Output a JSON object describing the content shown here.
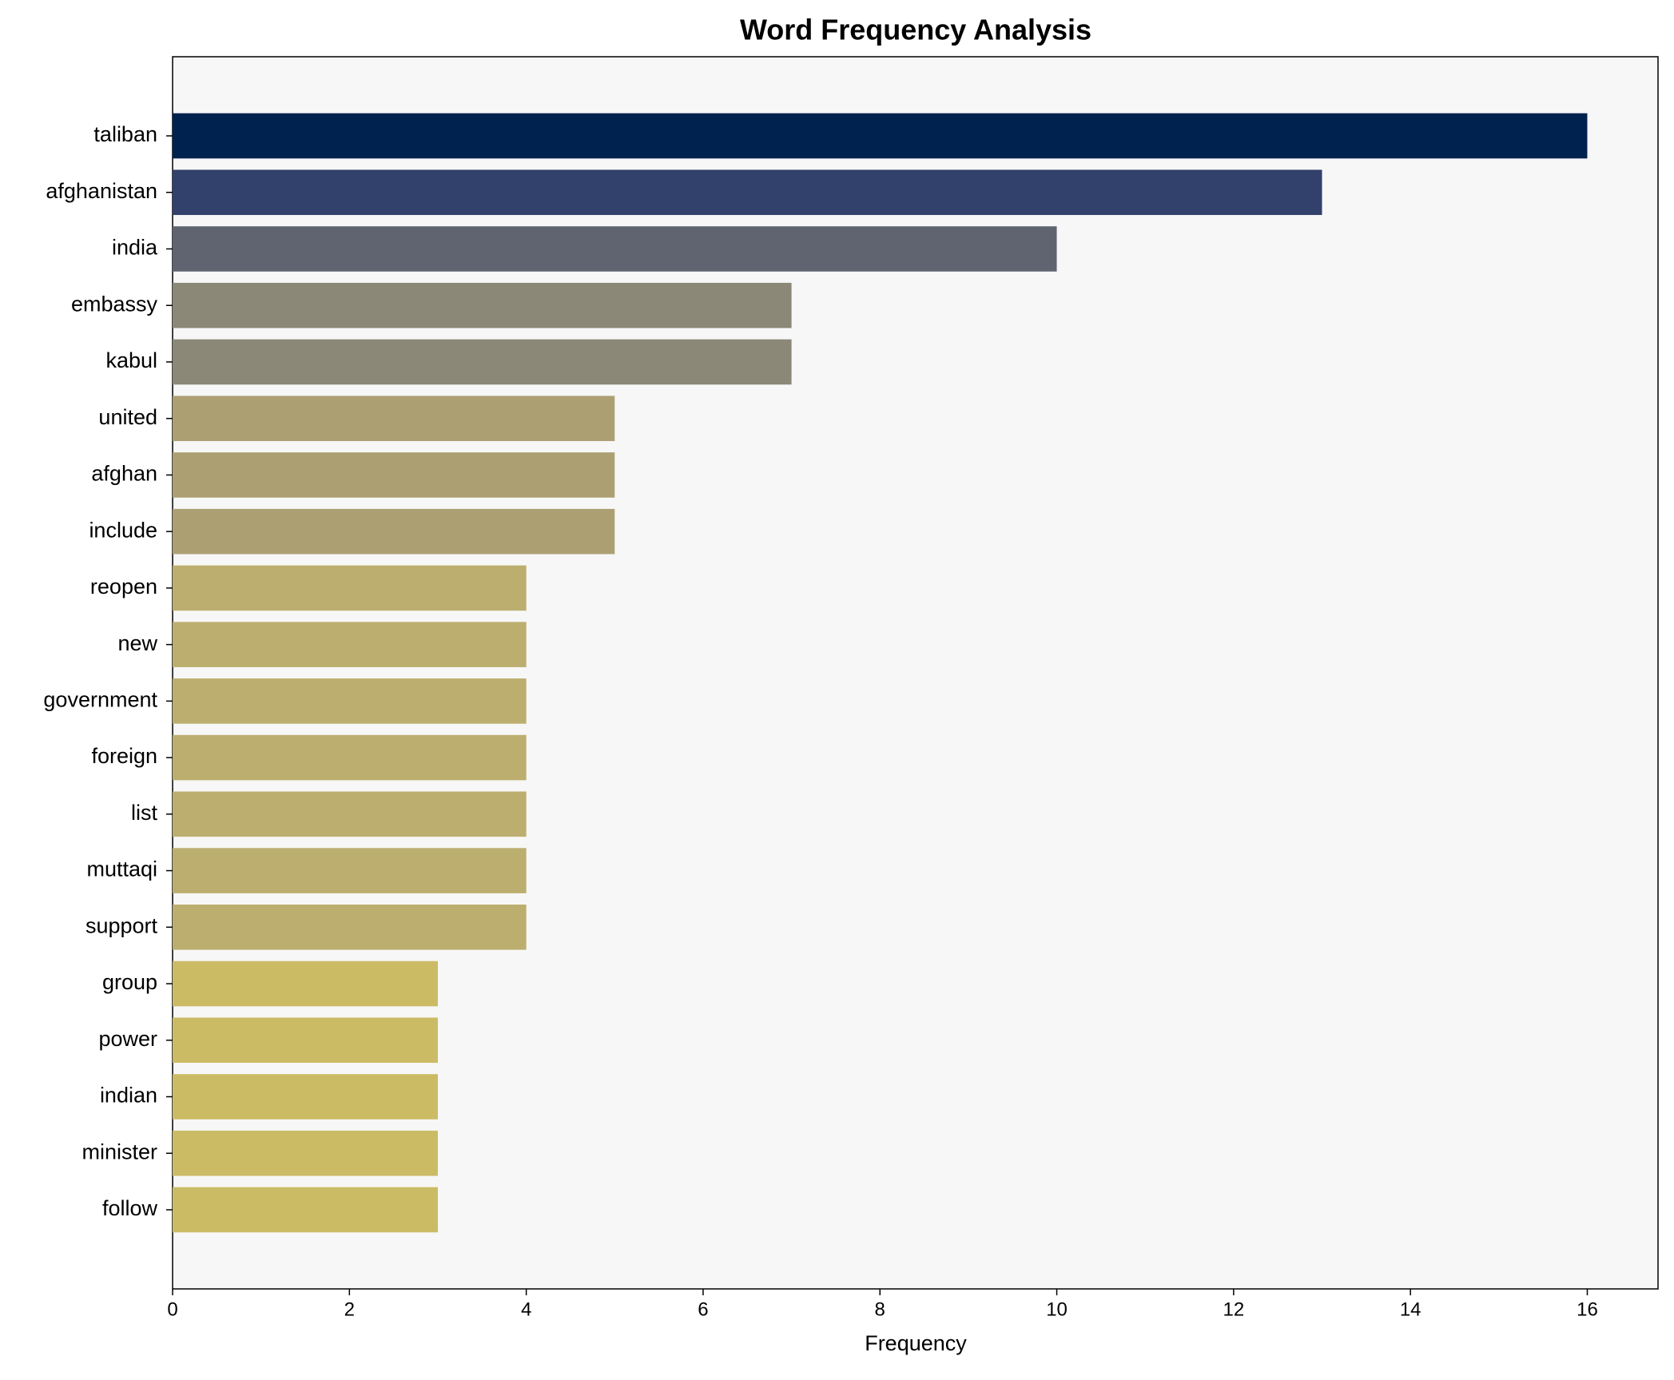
{
  "chart_data": {
    "type": "bar",
    "orientation": "horizontal",
    "title": "Word Frequency Analysis",
    "xlabel": "Frequency",
    "categories": [
      "taliban",
      "afghanistan",
      "india",
      "embassy",
      "kabul",
      "united",
      "afghan",
      "include",
      "reopen",
      "new",
      "government",
      "foreign",
      "list",
      "muttaqi",
      "support",
      "group",
      "power",
      "indian",
      "minister",
      "follow"
    ],
    "values": [
      16,
      13,
      10,
      7,
      7,
      5,
      5,
      5,
      4,
      4,
      4,
      4,
      4,
      4,
      4,
      3,
      3,
      3,
      3,
      3
    ],
    "colors": [
      "#00224f",
      "#32416c",
      "#5f6470",
      "#8b8877",
      "#8b8877",
      "#aca073",
      "#aca073",
      "#aca073",
      "#bcae6e",
      "#bcae6e",
      "#bcae6e",
      "#bcae6e",
      "#bcae6e",
      "#bcae6e",
      "#bcae6e",
      "#cbbb65",
      "#cbbb65",
      "#cbbb65",
      "#cbbb65",
      "#cbbb65"
    ],
    "xlim": [
      0,
      16.8
    ],
    "xticks": [
      0,
      2,
      4,
      6,
      8,
      10,
      12,
      14,
      16
    ]
  }
}
